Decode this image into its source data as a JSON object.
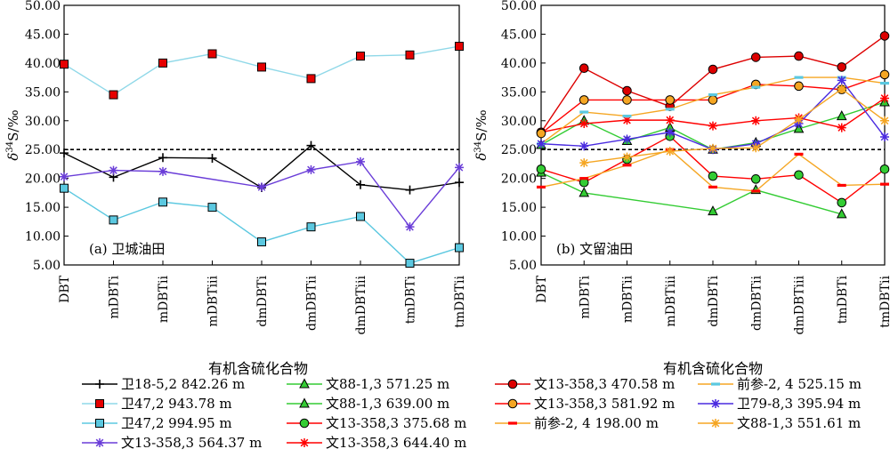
{
  "chart_data": [
    {
      "type": "line",
      "panel_label": "(a) 卫城油田",
      "xlabel": "有机含硫化合物",
      "ylabel": "δ34S/‰",
      "ylabel_main": "δ",
      "ylabel_sup": "34",
      "ylabel_rest": "S/‰",
      "ylim": [
        5,
        50
      ],
      "yticks": [
        "5.00",
        "10.00",
        "15.00",
        "20.00",
        "25.00",
        "30.00",
        "35.00",
        "40.00",
        "45.00",
        "50.00"
      ],
      "reference_line": 25,
      "categories": [
        "DBT",
        "mDBTi",
        "mDBTii",
        "mDBTiii",
        "dmDBTi",
        "dmDBTii",
        "dmDBTiii",
        "tmDBTi",
        "tmDBTii"
      ],
      "series": [
        {
          "name": "卫18-5,2 842.26 m",
          "color": "#000000",
          "marker": "plus",
          "values": [
            24.4,
            20.2,
            23.6,
            23.5,
            18.4,
            25.7,
            18.9,
            18.0,
            19.3
          ]
        },
        {
          "name": "卫47,2 943.78 m",
          "color": "#8fd8e8",
          "marker": "square",
          "markerColor": "#e60000",
          "values": [
            39.8,
            34.5,
            40.0,
            41.6,
            39.3,
            37.3,
            41.2,
            41.4,
            42.9
          ]
        },
        {
          "name": "卫47,2 994.95 m",
          "color": "#5bc8e0",
          "marker": "square",
          "markerColor": "#5bc8e0",
          "values": [
            18.3,
            12.8,
            15.9,
            15.0,
            9.0,
            11.6,
            13.4,
            5.3,
            8.0
          ]
        },
        {
          "name": "文13-358,3 564.37 m",
          "color": "#6a3dd8",
          "marker": "star",
          "markerColor": "#6a3dd8",
          "values": [
            20.3,
            21.4,
            21.2,
            null,
            18.5,
            21.5,
            22.9,
            11.6,
            21.9
          ]
        }
      ]
    },
    {
      "type": "line",
      "panel_label": "(b) 文留油田",
      "xlabel": "有机含硫化合物",
      "ylabel": "δ34S/‰",
      "ylabel_main": "δ",
      "ylabel_sup": "34",
      "ylabel_rest": "S/‰",
      "ylim": [
        5,
        50
      ],
      "yticks": [
        "5.00",
        "10.00",
        "15.00",
        "20.00",
        "25.00",
        "30.00",
        "35.00",
        "40.00",
        "45.00",
        "50.00"
      ],
      "reference_line": 25,
      "categories": [
        "DBT",
        "mDBTi",
        "mDBTii",
        "mDBTiii",
        "dmDBTi",
        "dmDBTii",
        "dmDBTiii",
        "tmDBTi",
        "tmDBTii"
      ],
      "series": [
        {
          "name": "文88-1,3 571.25 m",
          "color": "#33cc33",
          "marker": "triangle",
          "markerColor": "#33cc33",
          "values": [
            25.8,
            30.0,
            26.5,
            28.8,
            25.0,
            26.2,
            28.6,
            30.8,
            33.2
          ]
        },
        {
          "name": "文88-1,3 639.00 m",
          "color": "#33cc33",
          "marker": "triangle",
          "markerColor": "#33cc33",
          "values": [
            21.0,
            17.5,
            null,
            null,
            14.3,
            18.0,
            null,
            13.8,
            null
          ]
        },
        {
          "name": "文13-358,3 375.68 m",
          "color": "#ff0000",
          "marker": "circle",
          "markerColor": "#33cc33",
          "values": [
            21.6,
            19.3,
            23.3,
            27.3,
            20.4,
            19.9,
            20.6,
            15.8,
            21.6
          ]
        },
        {
          "name": "文13-358,3 644.40 m",
          "color": "#ff0000",
          "marker": "star",
          "markerColor": "#ff0000",
          "values": [
            28.0,
            29.5,
            30.1,
            30.1,
            29.1,
            30.0,
            30.5,
            28.8,
            33.9
          ]
        },
        {
          "name": "文13-358,3 470.58 m",
          "color": "#dd0000",
          "marker": "circle",
          "markerColor": "#dd0000",
          "values": [
            28.0,
            39.1,
            35.2,
            32.5,
            38.9,
            41.0,
            41.2,
            39.3,
            44.7
          ]
        },
        {
          "name": "文13-358,3 581.92 m",
          "color": "#ff0000",
          "marker": "circle",
          "markerColor": "#f5a623",
          "values": [
            27.8,
            33.6,
            33.6,
            33.6,
            33.6,
            36.3,
            36.0,
            35.4,
            38.0
          ]
        },
        {
          "name": "前参-2, 4 198.00 m",
          "color": "#f5a623",
          "marker": "dash",
          "markerColor": "#ff0000",
          "values": [
            18.5,
            20.0,
            22.3,
            25.0,
            18.5,
            17.8,
            24.2,
            18.8,
            19.0
          ]
        },
        {
          "name": "前参-2, 4 525.15 m",
          "color": "#f5a623",
          "marker": "dash",
          "markerColor": "#5bc8e0",
          "values": [
            26.0,
            31.5,
            30.8,
            32.0,
            34.5,
            35.8,
            37.5,
            37.5,
            36.5
          ]
        },
        {
          "name": "卫79-8,3 395.94 m",
          "color": "#4a2be0",
          "marker": "star",
          "markerColor": "#4a2be0",
          "values": [
            26.0,
            25.6,
            26.8,
            28.0,
            25.0,
            26.0,
            29.5,
            37.0,
            27.2
          ]
        },
        {
          "name": "文88-1,3 551.61 m",
          "color": "#f5a623",
          "marker": "star",
          "markerColor": "#f5a623",
          "values": [
            null,
            22.7,
            23.7,
            24.7,
            25.2,
            25.3,
            30.2,
            35.5,
            30.0
          ]
        }
      ]
    }
  ]
}
